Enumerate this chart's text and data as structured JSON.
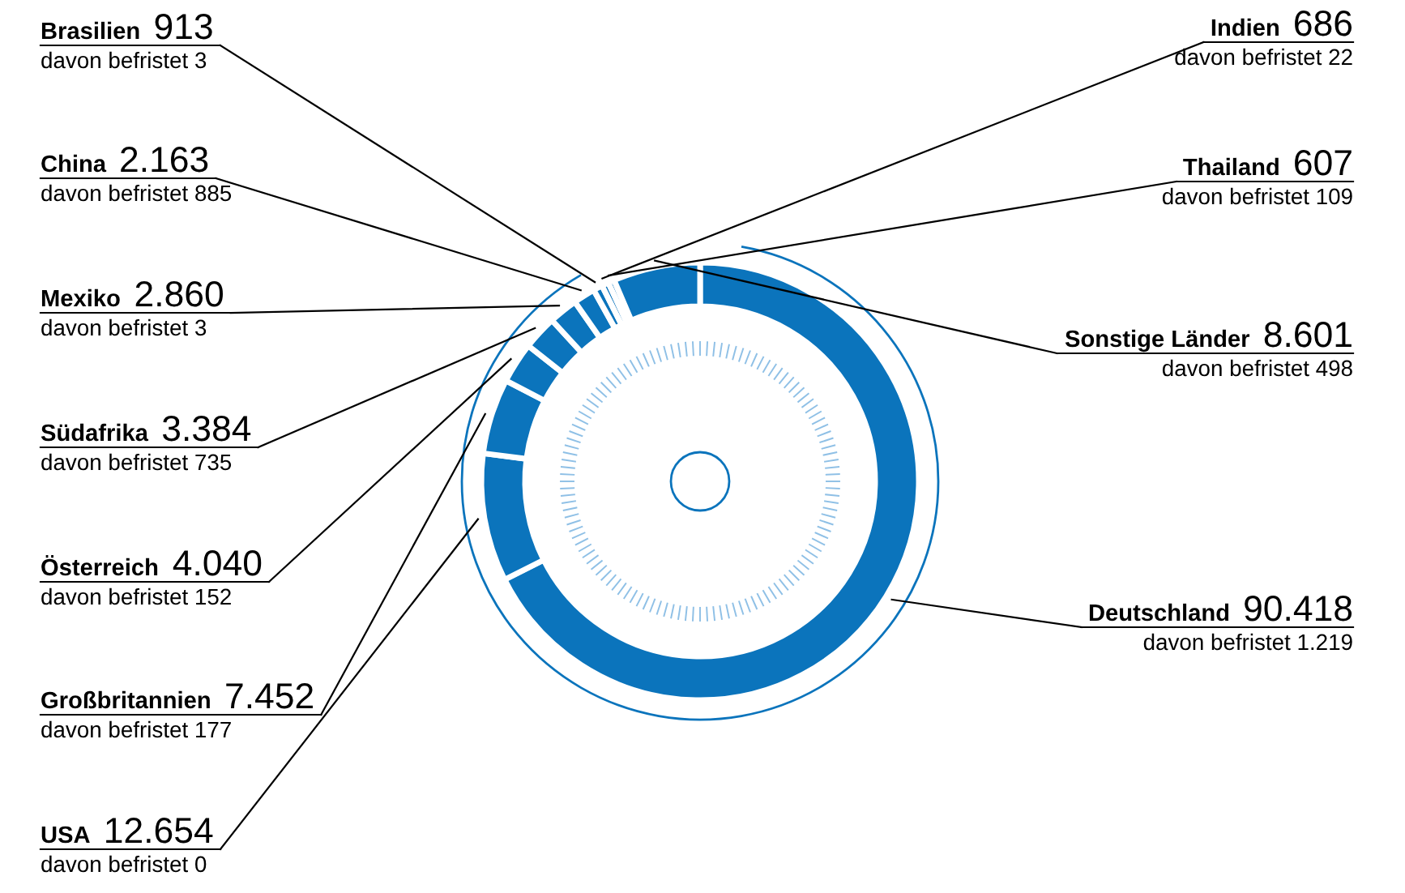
{
  "chart_data": {
    "type": "donut",
    "color": "#0b74bc",
    "categories": [
      "Deutschland",
      "USA",
      "Großbritannien",
      "Österreich",
      "Südafrika",
      "Mexiko",
      "China",
      "Brasilien",
      "Indien",
      "Thailand",
      "Sonstige Länder"
    ],
    "values": [
      90418,
      12654,
      7452,
      4040,
      3384,
      2860,
      2163,
      913,
      686,
      607,
      8601
    ],
    "value_labels": [
      "90.418",
      "12.654",
      "7.452",
      "4.040",
      "3.384",
      "2.860",
      "2.163",
      "913",
      "686",
      "607",
      "8.601"
    ],
    "annotations": [
      {
        "text": "davon befristet 1.219",
        "x": "Deutschland"
      },
      {
        "text": "davon befristet 0",
        "x": "USA"
      },
      {
        "text": "davon befristet 177",
        "x": "Großbritannien"
      },
      {
        "text": "davon befristet 152",
        "x": "Österreich"
      },
      {
        "text": "davon befristet 735",
        "x": "Südafrika"
      },
      {
        "text": "davon befristet 3",
        "x": "Mexiko"
      },
      {
        "text": "davon befristet 885",
        "x": "China"
      },
      {
        "text": "davon befristet 3",
        "x": "Brasilien"
      },
      {
        "text": "davon befristet 22",
        "x": "Indien"
      },
      {
        "text": "davon befristet 109",
        "x": "Thailand"
      },
      {
        "text": "davon befristet 498",
        "x": "Sonstige Länder"
      }
    ]
  }
}
